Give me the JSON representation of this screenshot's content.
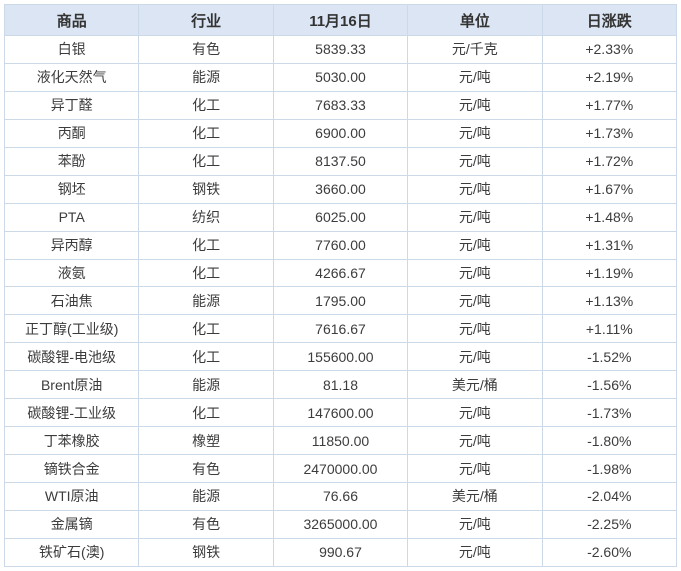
{
  "chart_data": {
    "type": "table",
    "columns": [
      "商品",
      "行业",
      "11月16日",
      "单位",
      "日涨跌"
    ],
    "rows": [
      {
        "commodity": "白银",
        "industry": "有色",
        "price": "5839.33",
        "unit": "元/千克",
        "change": "+2.33%"
      },
      {
        "commodity": "液化天然气",
        "industry": "能源",
        "price": "5030.00",
        "unit": "元/吨",
        "change": "+2.19%"
      },
      {
        "commodity": "异丁醛",
        "industry": "化工",
        "price": "7683.33",
        "unit": "元/吨",
        "change": "+1.77%"
      },
      {
        "commodity": "丙酮",
        "industry": "化工",
        "price": "6900.00",
        "unit": "元/吨",
        "change": "+1.73%"
      },
      {
        "commodity": "苯酚",
        "industry": "化工",
        "price": "8137.50",
        "unit": "元/吨",
        "change": "+1.72%"
      },
      {
        "commodity": "钢坯",
        "industry": "钢铁",
        "price": "3660.00",
        "unit": "元/吨",
        "change": "+1.67%"
      },
      {
        "commodity": "PTA",
        "industry": "纺织",
        "price": "6025.00",
        "unit": "元/吨",
        "change": "+1.48%"
      },
      {
        "commodity": "异丙醇",
        "industry": "化工",
        "price": "7760.00",
        "unit": "元/吨",
        "change": "+1.31%"
      },
      {
        "commodity": "液氨",
        "industry": "化工",
        "price": "4266.67",
        "unit": "元/吨",
        "change": "+1.19%"
      },
      {
        "commodity": "石油焦",
        "industry": "能源",
        "price": "1795.00",
        "unit": "元/吨",
        "change": "+1.13%"
      },
      {
        "commodity": "正丁醇(工业级)",
        "industry": "化工",
        "price": "7616.67",
        "unit": "元/吨",
        "change": "+1.11%"
      },
      {
        "commodity": "碳酸锂-电池级",
        "industry": "化工",
        "price": "155600.00",
        "unit": "元/吨",
        "change": "-1.52%"
      },
      {
        "commodity": "Brent原油",
        "industry": "能源",
        "price": "81.18",
        "unit": "美元/桶",
        "change": "-1.56%"
      },
      {
        "commodity": "碳酸锂-工业级",
        "industry": "化工",
        "price": "147600.00",
        "unit": "元/吨",
        "change": "-1.73%"
      },
      {
        "commodity": "丁苯橡胶",
        "industry": "橡塑",
        "price": "11850.00",
        "unit": "元/吨",
        "change": "-1.80%"
      },
      {
        "commodity": "镝铁合金",
        "industry": "有色",
        "price": "2470000.00",
        "unit": "元/吨",
        "change": "-1.98%"
      },
      {
        "commodity": "WTI原油",
        "industry": "能源",
        "price": "76.66",
        "unit": "美元/桶",
        "change": "-2.04%"
      },
      {
        "commodity": "金属镝",
        "industry": "有色",
        "price": "3265000.00",
        "unit": "元/吨",
        "change": "-2.25%"
      },
      {
        "commodity": "铁矿石(澳)",
        "industry": "钢铁",
        "price": "990.67",
        "unit": "元/吨",
        "change": "-2.60%"
      }
    ]
  },
  "colors": {
    "up": "#f33a3a",
    "down": "#1aa31a",
    "header_bg": "#dbe5f3",
    "border": "#ccd9e8",
    "text": "#3c3c3c"
  }
}
